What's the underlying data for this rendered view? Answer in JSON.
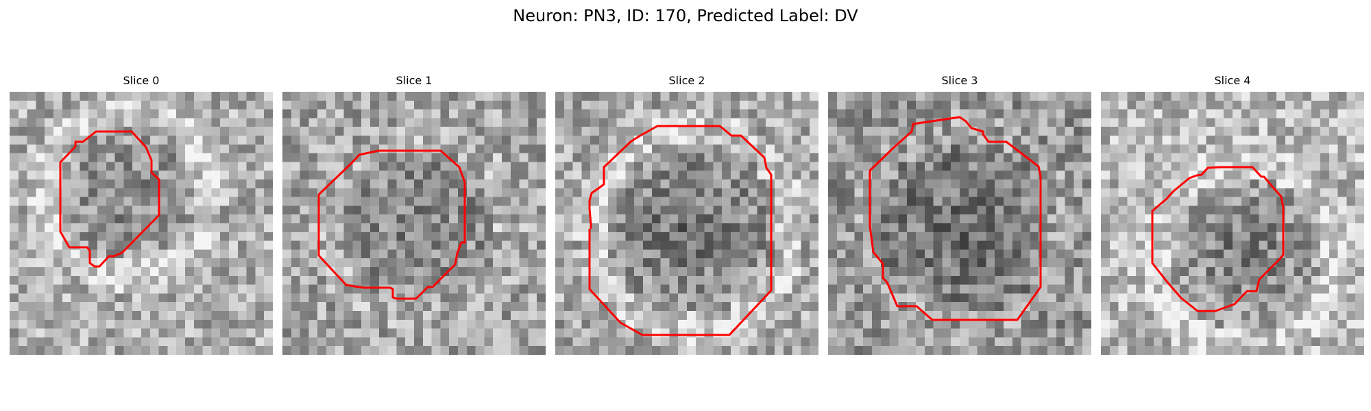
{
  "figure": {
    "title": "Neuron: PN3, ID: 170, Predicted Label: DV"
  },
  "slices": [
    {
      "title": "Slice 0"
    },
    {
      "title": "Slice 1"
    },
    {
      "title": "Slice 2"
    },
    {
      "title": "Slice 3"
    },
    {
      "title": "Slice 4"
    }
  ],
  "colors": {
    "contour": "#ff0000",
    "background": "#ffffff"
  }
}
